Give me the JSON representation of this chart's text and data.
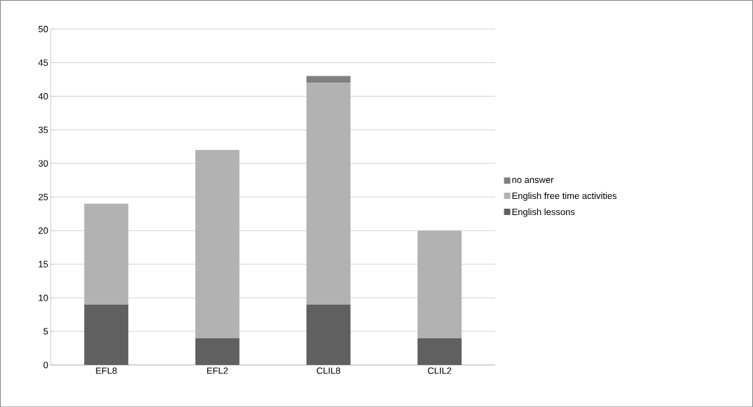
{
  "chart_data": {
    "type": "bar",
    "stacked": true,
    "categories": [
      "EFL8",
      "EFL2",
      "CLIL8",
      "CLIL2"
    ],
    "series": [
      {
        "name": "English lessons",
        "color": "#606060",
        "values": [
          9,
          4,
          9,
          4
        ]
      },
      {
        "name": "English free time activities",
        "color": "#b2b2b2",
        "values": [
          15,
          28,
          33,
          16
        ]
      },
      {
        "name": "no answer",
        "color": "#808080",
        "values": [
          0,
          0,
          1,
          0
        ]
      }
    ],
    "ylim": [
      0,
      50
    ],
    "yticks": [
      0,
      5,
      10,
      15,
      20,
      25,
      30,
      35,
      40,
      45,
      50
    ],
    "grid": "y",
    "legend": "right"
  }
}
